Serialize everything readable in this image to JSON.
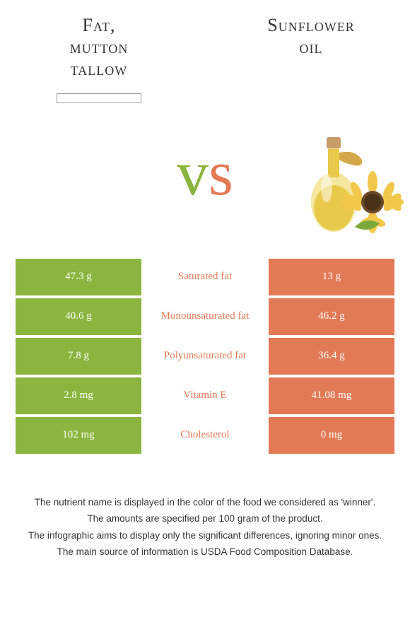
{
  "left_food": {
    "title_line1": "Fat,",
    "title_line2": "mutton",
    "title_line3": "tallow"
  },
  "right_food": {
    "title_line1": "Sunflower",
    "title_line2": "oil"
  },
  "vs": {
    "v": "v",
    "s": "s"
  },
  "colors": {
    "left": "#8bb53e",
    "right": "#e37a56",
    "bg": "#ffffff",
    "text": "#333333"
  },
  "table": {
    "rows": [
      {
        "left": "47.3 g",
        "label": "Saturated fat",
        "right": "13 g",
        "winner": "right"
      },
      {
        "left": "40.6 g",
        "label": "Monounsaturated fat",
        "right": "46.2 g",
        "winner": "right"
      },
      {
        "left": "7.8 g",
        "label": "Polyunsaturated fat",
        "right": "36.4 g",
        "winner": "right"
      },
      {
        "left": "2.8 mg",
        "label": "Vitamin E",
        "right": "41.08 mg",
        "winner": "right"
      },
      {
        "left": "102 mg",
        "label": "Cholesterol",
        "right": "0 mg",
        "winner": "right"
      }
    ]
  },
  "footnotes": [
    "The nutrient name is displayed in the color of the food we considered as 'winner'.",
    "The amounts are specified per 100 gram of the product.",
    "The infographic aims to display only the significant differences, ignoring minor ones.",
    "The main source of information is USDA Food Composition Database."
  ],
  "sunflower_image": {
    "bottle_body": "#f5e7a0",
    "bottle_oil": "#e8c94a",
    "bottle_neck": "#d4a84a",
    "cork": "#c89b6b",
    "flower_petals": "#f2c84b",
    "flower_center": "#6b4a2a",
    "leaf": "#7ba83a"
  }
}
